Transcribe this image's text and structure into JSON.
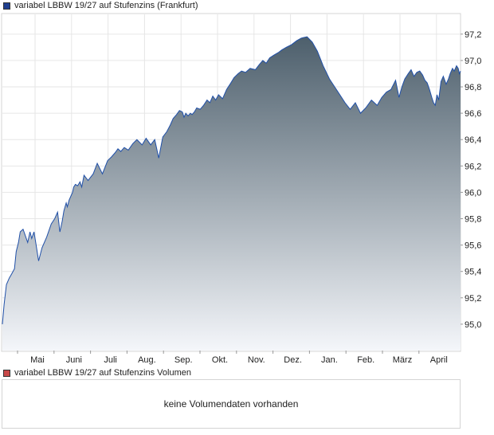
{
  "legend": {
    "price_label": "variabel LBBW 19/27 auf Stufenzins (Frankfurt)",
    "price_color": "#1f3f8f",
    "volume_label": "variabel LBBW 19/27 auf Stufenzins Volumen",
    "volume_color": "#c84848"
  },
  "volume": {
    "message": "keine Volumendaten vorhanden"
  },
  "chart_data": {
    "type": "area",
    "title": "variabel LBBW 19/27 auf Stufenzins (Frankfurt)",
    "ylim": [
      94.8,
      97.35
    ],
    "y_ticks": [
      "97,2",
      "97,0",
      "96,8",
      "96,6",
      "96,4",
      "96,2",
      "96,0",
      "95,8",
      "95,6",
      "95,4",
      "95,2",
      "95,0"
    ],
    "x_ticks": [
      "Mai",
      "Juni",
      "Juli",
      "Aug.",
      "Sep.",
      "Okt.",
      "Nov.",
      "Dez.",
      "Jan.",
      "Feb.",
      "März",
      "April"
    ],
    "grid": true,
    "line_color": "#2050a8",
    "fill_top": "#4d5f6c",
    "fill_bottom": "#f4f6fa",
    "x": [
      0,
      0.3,
      0.7,
      1.2,
      1.6,
      2.1,
      2.4,
      2.8,
      3.1,
      3.6,
      4.4,
      4.8,
      5.1,
      5.5,
      5.8,
      6.3,
      6.9,
      7.7,
      8.5,
      9.1,
      9.6,
      10.0,
      10.4,
      10.7,
      11.1,
      11.3,
      11.6,
      11.9,
      12.2,
      12.4,
      12.7,
      13.1,
      13.5,
      13.8,
      14.2,
      14.9,
      15.8,
      16.5,
      17.4,
      18.3,
      19.0,
      19.6,
      20.1,
      20.6,
      21.2,
      21.9,
      22.7,
      23.4,
      24.3,
      25.0,
      25.8,
      26.5,
      27.2,
      27.9,
      28.6,
      29.2,
      29.7,
      30.3,
      30.8,
      31.3,
      31.6,
      31.9,
      32.3,
      32.7,
      33.0,
      33.4,
      33.8,
      34.4,
      35.0,
      35.6,
      36.1,
      36.6,
      37.1,
      37.6,
      38.3,
      39.0,
      39.6,
      40.3,
      41.0,
      41.6,
      42.3,
      43.1,
      44.0,
      44.7,
      45.3,
      45.9,
      46.5,
      47.2,
      48.0,
      48.6,
      49.4,
      50.3,
      51.2,
      52.0,
      53.0,
      53.9,
      54.8,
      55.8,
      56.9,
      57.8,
      58.7,
      59.6,
      60.5,
      61.4,
      62.3,
      63.2,
      64.2,
      65.2,
      66.0,
      66.8,
      67.6,
      68.4,
      69.0,
      69.5,
      70.0,
      70.6,
      71.1,
      71.6,
      72.1,
      72.6,
      73.1,
      73.5,
      73.9,
      74.3,
      74.7,
      75.0,
      75.3,
      75.6,
      75.9,
      76.3,
      76.7,
      77.2,
      77.6,
      77.9,
      78.3,
      78.6,
      79.0,
      79.3,
      79.5,
      79.7
    ],
    "values": [
      95.0,
      95.15,
      95.3,
      95.35,
      95.38,
      95.42,
      95.55,
      95.62,
      95.7,
      95.72,
      95.62,
      95.7,
      95.65,
      95.7,
      95.62,
      95.48,
      95.58,
      95.66,
      95.76,
      95.8,
      95.85,
      95.7,
      95.78,
      95.86,
      95.92,
      95.89,
      95.94,
      95.97,
      96.0,
      96.04,
      96.06,
      96.05,
      96.08,
      96.04,
      96.13,
      96.09,
      96.14,
      96.22,
      96.14,
      96.24,
      96.27,
      96.3,
      96.33,
      96.31,
      96.34,
      96.32,
      96.37,
      96.4,
      96.36,
      96.41,
      96.36,
      96.4,
      96.26,
      96.42,
      96.46,
      96.51,
      96.56,
      96.59,
      96.62,
      96.61,
      96.57,
      96.6,
      96.58,
      96.6,
      96.59,
      96.61,
      96.64,
      96.63,
      96.66,
      96.7,
      96.68,
      96.73,
      96.7,
      96.74,
      96.71,
      96.78,
      96.82,
      96.87,
      96.9,
      96.92,
      96.91,
      96.94,
      96.93,
      96.97,
      97.0,
      96.98,
      97.02,
      97.04,
      97.06,
      97.08,
      97.1,
      97.12,
      97.15,
      97.17,
      97.18,
      97.14,
      97.07,
      96.96,
      96.86,
      96.8,
      96.74,
      96.68,
      96.63,
      96.68,
      96.6,
      96.64,
      96.7,
      96.66,
      96.72,
      96.76,
      96.78,
      96.85,
      96.72,
      96.8,
      96.86,
      96.9,
      96.93,
      96.88,
      96.91,
      96.92,
      96.89,
      96.85,
      96.83,
      96.78,
      96.72,
      96.68,
      96.66,
      96.74,
      96.7,
      96.84,
      96.88,
      96.82,
      96.86,
      96.9,
      96.94,
      96.92,
      96.96,
      96.94,
      96.9,
      96.92
    ]
  }
}
